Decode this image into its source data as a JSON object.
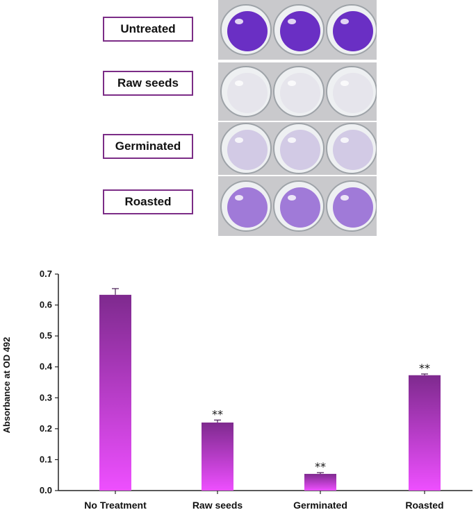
{
  "panels": [
    {
      "label": "Untreated",
      "well_color": "#6a2fc4",
      "intensity": 1.0
    },
    {
      "label": "Raw seeds",
      "well_color": "#d6cfe3",
      "intensity": 0.12
    },
    {
      "label": "Germinated",
      "well_color": "#b7a6d9",
      "intensity": 0.35
    },
    {
      "label": "Roasted",
      "well_color": "#8a57d0",
      "intensity": 0.7
    }
  ],
  "colors": {
    "bar_top": "#7e2a8e",
    "bar_bottom": "#ee4fff",
    "panel_border": "#7b2c86",
    "plate_bg": "#c9c9cc"
  },
  "chart_data": {
    "type": "bar",
    "title": "",
    "xlabel": "",
    "ylabel": "Absorbance at OD 492",
    "ylim": [
      0,
      0.7
    ],
    "yticks": [
      "0.0",
      "0.1",
      "0.2",
      "0.3",
      "0.4",
      "0.5",
      "0.6",
      "0.7"
    ],
    "categories": [
      "No Treatment",
      "Raw seeds",
      "Germinated",
      "Roasted"
    ],
    "values": [
      0.633,
      0.22,
      0.054,
      0.373
    ],
    "errors": [
      0.02,
      0.008,
      0.004,
      0.004
    ],
    "annotations": [
      "",
      "**",
      "**",
      "**"
    ]
  }
}
